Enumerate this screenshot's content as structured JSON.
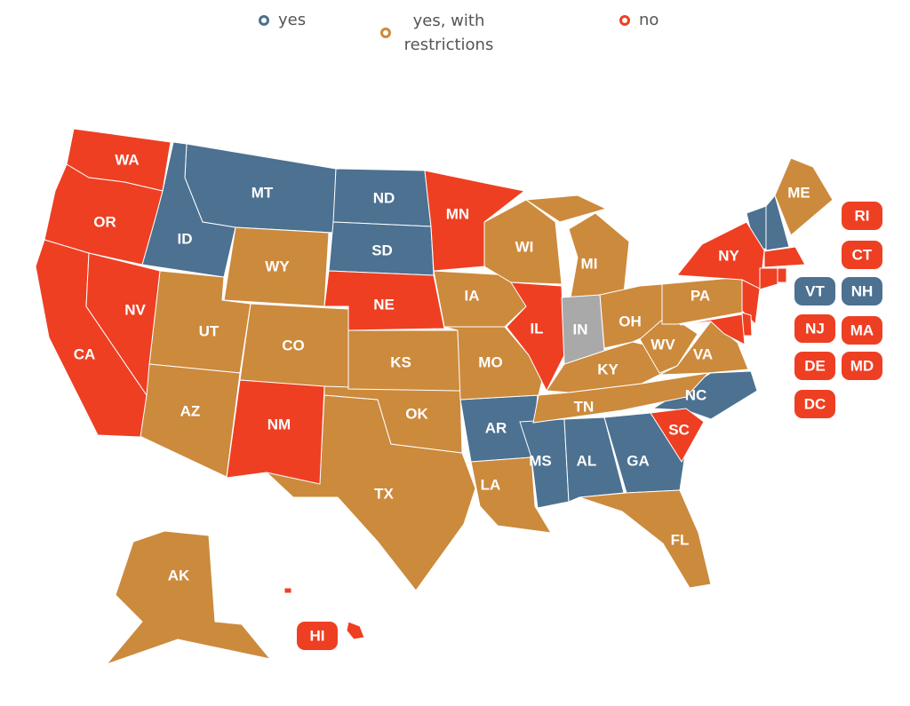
{
  "legend": [
    {
      "label": "yes",
      "color": "#4c7191",
      "states": [
        "MT",
        "ID",
        "ND",
        "SD",
        "AR",
        "MS",
        "AL",
        "GA",
        "NC",
        "VT",
        "NH"
      ]
    },
    {
      "label": "yes, with restrictions",
      "color": "#cc8a3d",
      "states": [
        "WY",
        "UT",
        "CO",
        "AZ",
        "TX",
        "OK",
        "KS",
        "IA",
        "MO",
        "LA",
        "WI",
        "MI",
        "OH",
        "KY",
        "TN",
        "FL",
        "WV",
        "VA",
        "PA",
        "ME",
        "AK"
      ]
    },
    {
      "label": "no",
      "color": "#ee3f23",
      "states": [
        "WA",
        "OR",
        "CA",
        "NV",
        "NM",
        "NE",
        "MN",
        "IL",
        "SC",
        "NY",
        "NJ",
        "DE",
        "MD",
        "MA",
        "CT",
        "RI",
        "HI",
        "DC"
      ]
    }
  ],
  "other": {
    "color": "#a9a9a9",
    "states": [
      "IN"
    ]
  }
}
